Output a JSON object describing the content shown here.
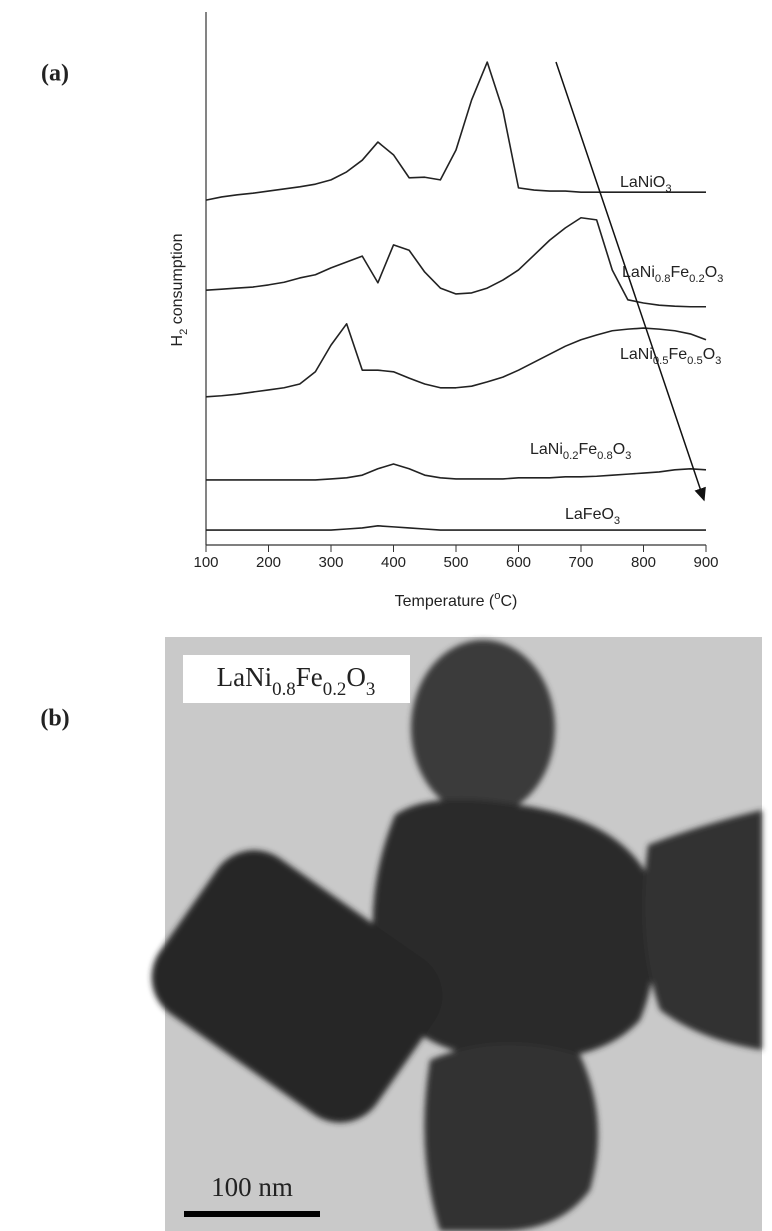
{
  "chart_data": {
    "type": "line",
    "x_label": "Temperature (oC)",
    "y_label": "H2 consumption",
    "x": [
      100,
      125,
      150,
      175,
      200,
      225,
      250,
      275,
      300,
      325,
      350,
      375,
      400,
      425,
      450,
      475,
      500,
      525,
      550,
      575,
      600,
      625,
      650,
      675,
      700,
      725,
      750,
      775,
      800,
      825,
      850,
      875,
      900
    ],
    "series": [
      {
        "name": "LaNiO3",
        "color": "#222222",
        "values": [
          64.7,
          65.3,
          65.7,
          66.0,
          66.4,
          66.8,
          67.2,
          67.7,
          68.5,
          70.0,
          72.2,
          75.6,
          73.2,
          68.9,
          69.0,
          68.5,
          74.1,
          83.5,
          90.6,
          81.6,
          67.0,
          66.6,
          66.4,
          66.4,
          66.2,
          66.2,
          66.2,
          66.2,
          66.2,
          66.2,
          66.2,
          66.2,
          66.2
        ]
      },
      {
        "name": "LaNi0.8Fe0.2O3",
        "color": "#222222",
        "values": [
          47.8,
          48.0,
          48.2,
          48.4,
          48.8,
          49.3,
          50.1,
          50.7,
          52.0,
          53.1,
          54.2,
          49.2,
          56.3,
          55.3,
          51.2,
          48.2,
          47.1,
          47.3,
          48.2,
          49.7,
          51.6,
          54.4,
          57.2,
          59.5,
          61.4,
          61.0,
          51.6,
          46.0,
          45.4,
          45.0,
          44.8,
          44.7,
          44.7
        ]
      },
      {
        "name": "LaNi0.5Fe0.5O3",
        "color": "#222222",
        "values": [
          27.8,
          28.0,
          28.3,
          28.7,
          29.1,
          29.5,
          30.2,
          32.5,
          37.5,
          41.5,
          32.8,
          32.8,
          32.5,
          31.3,
          30.2,
          29.5,
          29.5,
          29.8,
          30.6,
          31.5,
          32.8,
          34.3,
          35.8,
          37.3,
          38.5,
          39.4,
          40.2,
          40.5,
          40.7,
          40.5,
          40.2,
          39.6,
          38.5
        ]
      },
      {
        "name": "LaNi0.2Fe0.8O3",
        "color": "#222222",
        "values": [
          12.2,
          12.2,
          12.2,
          12.2,
          12.2,
          12.2,
          12.2,
          12.2,
          12.4,
          12.6,
          13.1,
          14.3,
          15.2,
          14.3,
          13.1,
          12.6,
          12.4,
          12.4,
          12.4,
          12.4,
          12.6,
          12.6,
          12.6,
          12.8,
          12.8,
          12.9,
          13.1,
          13.3,
          13.5,
          13.7,
          14.1,
          14.3,
          14.1
        ]
      },
      {
        "name": "LaFeO3",
        "color": "#222222",
        "values": [
          2.8,
          2.8,
          2.8,
          2.8,
          2.8,
          2.8,
          2.8,
          2.8,
          2.8,
          3.0,
          3.2,
          3.6,
          3.4,
          3.2,
          3.0,
          2.8,
          2.8,
          2.8,
          2.8,
          2.8,
          2.8,
          2.8,
          2.8,
          2.8,
          2.8,
          2.8,
          2.8,
          2.8,
          2.8,
          2.8,
          2.8,
          2.8,
          2.8
        ]
      }
    ],
    "xlim": [
      100,
      900
    ],
    "ylim": [
      0,
      100
    ],
    "xticks": [
      100,
      200,
      300,
      400,
      500,
      600,
      700,
      800,
      900
    ]
  },
  "panels": {
    "a": "(a)",
    "b": "(b)"
  },
  "image": {
    "label": "LaNi0.8Fe0.2O3",
    "scale_bar": "100 nm"
  }
}
